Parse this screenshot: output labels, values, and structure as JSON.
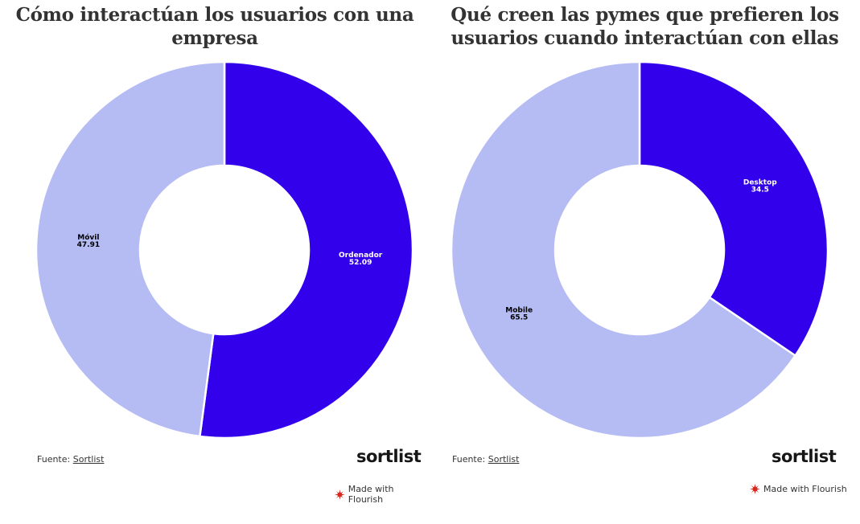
{
  "colors": {
    "primary": "#3300eb",
    "secondary": "#b5bbf3"
  },
  "chart_data": [
    {
      "type": "pie",
      "donut": true,
      "title": "Cómo interactúan los usuarios con una empresa",
      "categories": [
        "Ordenador",
        "Móvil"
      ],
      "values": [
        52.09,
        47.91
      ],
      "value_labels": [
        "52.09",
        "47.91"
      ],
      "colors": [
        "#3300eb",
        "#b5bbf3"
      ],
      "label_colors": [
        "#ffffff",
        "#000000"
      ],
      "source_prefix": "Fuente:",
      "source_link": "Sortlist",
      "logo": "sortlist",
      "credit": "Made with Flourish"
    },
    {
      "type": "pie",
      "donut": true,
      "title": "Qué creen las pymes que prefieren los usuarios cuando interactúan con ellas",
      "categories": [
        "Desktop",
        "Mobile"
      ],
      "values": [
        34.5,
        65.5
      ],
      "value_labels": [
        "34.5",
        "65.5"
      ],
      "colors": [
        "#3300eb",
        "#b5bbf3"
      ],
      "label_colors": [
        "#ffffff",
        "#000000"
      ],
      "source_prefix": "Fuente:",
      "source_link": "Sortlist",
      "logo": "sortlist",
      "credit": "Made with Flourish"
    }
  ]
}
